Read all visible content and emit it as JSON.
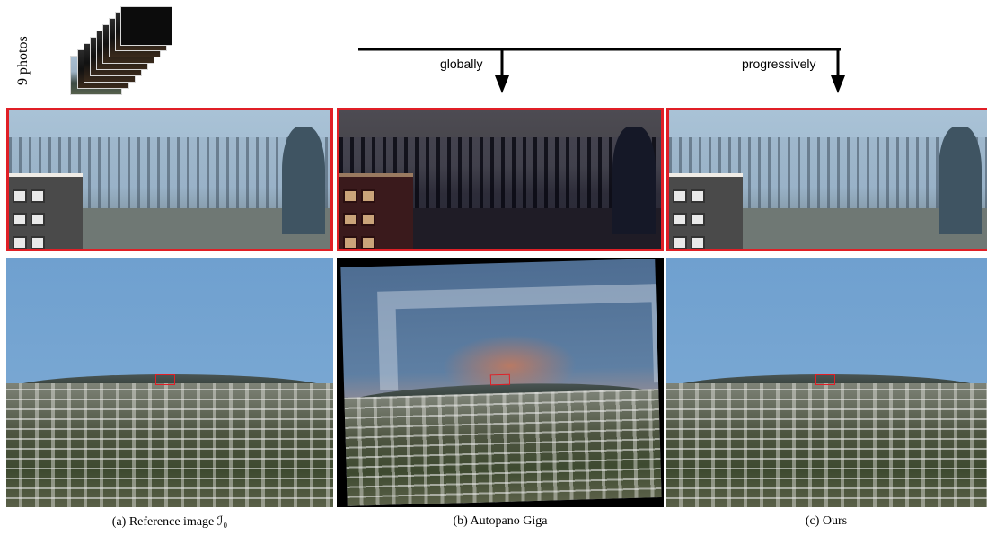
{
  "side_label": "9 photos",
  "arrows": {
    "left_label": "globally",
    "right_label": "progressively"
  },
  "captions": [
    "(a) Reference image ℐ₀",
    "(b) Autopano Giga",
    "(c) Ours"
  ],
  "colors": {
    "highlight": "#e01f26",
    "arrow": "#000000"
  },
  "stack": {
    "count": 9
  }
}
